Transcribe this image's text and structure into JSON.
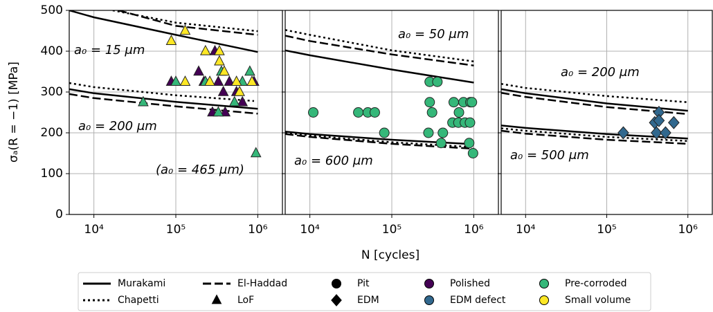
{
  "chart_data": {
    "type": "scatter",
    "ylabel": "σₐ(R = −1) [MPa]",
    "xlabel": "N [cycles]",
    "ylim": [
      0,
      500
    ],
    "yticks": [
      0,
      100,
      200,
      300,
      400,
      500
    ],
    "xlim": [
      5000,
      2000000
    ],
    "xscale": "log",
    "xticks": [
      {
        "value": 10000,
        "label": "10⁴"
      },
      {
        "value": 100000,
        "label": "10⁵"
      },
      {
        "value": 1000000,
        "label": "10⁶"
      }
    ],
    "grid": true,
    "legend": {
      "position": "bottom",
      "items": [
        {
          "name": "Murakami",
          "style": "solid"
        },
        {
          "name": "Chapetti",
          "style": "dotted"
        },
        {
          "name": "El-Haddad",
          "style": "dashed"
        },
        {
          "name": "LoF",
          "marker": "triangle"
        },
        {
          "name": "Pit",
          "marker": "circle"
        },
        {
          "name": "EDM",
          "marker": "diamond"
        },
        {
          "name": "Polished",
          "color": "#440154"
        },
        {
          "name": "EDM defect",
          "color": "#31688e"
        },
        {
          "name": "Pre-corroded",
          "color": "#35b779"
        },
        {
          "name": "Small volume",
          "color": "#fde725"
        }
      ]
    },
    "panels": [
      {
        "annotations": [
          "a₀ = 15 μm",
          "a₀ = 200 μm",
          "(a₀ = 465 μm)"
        ],
        "curves": [
          {
            "style": "solid",
            "x": [
              5000,
              10000,
              100000,
              1000000
            ],
            "values": [
              500,
              483,
              440,
              398
            ]
          },
          {
            "style": "dashed",
            "x": [
              20000,
              100000,
              1000000
            ],
            "values": [
              500,
              462,
              440
            ]
          },
          {
            "style": "dotted",
            "x": [
              17000,
              100000,
              1000000
            ],
            "values": [
              500,
              470,
              449
            ]
          },
          {
            "style": "solid",
            "x": [
              5000,
              10000,
              100000,
              1000000
            ],
            "values": [
              307,
              297,
              276,
              259
            ]
          },
          {
            "style": "dashed",
            "x": [
              5000,
              10000,
              100000,
              1000000
            ],
            "values": [
              295,
              285,
              265,
              247
            ]
          },
          {
            "style": "dotted",
            "x": [
              5000,
              10000,
              100000,
              900000
            ],
            "values": [
              322,
              312,
              292,
              278
            ]
          }
        ],
        "points": [
          {
            "marker": "triangle",
            "color": "#440154",
            "x": [
              88000,
              190000,
              220000,
              280000,
              330000,
              380000,
              400000,
              450000,
              550000,
              650000,
              900000,
              300000
            ],
            "values": [
              325,
              350,
              325,
              250,
              325,
              300,
              250,
              325,
              300,
              275,
              325,
              400
            ]
          },
          {
            "marker": "triangle",
            "color": "#35b779",
            "x": [
              40000,
              100000,
              230000,
              360000,
              520000,
              650000,
              800000,
              950000,
              330000
            ],
            "values": [
              275,
              325,
              325,
              350,
              275,
              325,
              350,
              150,
              250
            ]
          },
          {
            "marker": "triangle",
            "color": "#fde725",
            "x": [
              130000,
              88000,
              230000,
              340000,
              340000,
              390000,
              130000,
              260000,
              550000,
              850000,
              600000
            ],
            "values": [
              450,
              425,
              400,
              400,
              375,
              350,
              325,
              325,
              325,
              325,
              300
            ]
          }
        ]
      },
      {
        "annotations": [
          "a₀ = 50 μm",
          "a₀ = 600 μm"
        ],
        "curves": [
          {
            "style": "solid",
            "x": [
              5000,
              10000,
              100000,
              1000000
            ],
            "values": [
              402,
              390,
              355,
              323
            ]
          },
          {
            "style": "dashed",
            "x": [
              5000,
              10000,
              100000,
              1000000
            ],
            "values": [
              438,
              425,
              392,
              365
            ]
          },
          {
            "style": "dotted",
            "x": [
              5000,
              10000,
              100000,
              1000000
            ],
            "values": [
              452,
              440,
              402,
              375
            ]
          },
          {
            "style": "solid",
            "x": [
              5000,
              10000,
              100000,
              1000000
            ],
            "values": [
              203,
              197,
              183,
              172
            ]
          },
          {
            "style": "dashed",
            "x": [
              5000,
              10000,
              100000,
              1000000
            ],
            "values": [
              197,
              190,
              173,
              161
            ]
          },
          {
            "style": "dotted",
            "x": [
              5000,
              10000,
              100000,
              1000000
            ],
            "values": [
              200,
              193,
              177,
              165
            ]
          }
        ],
        "points": [
          {
            "marker": "circle",
            "color": "#35b779",
            "x": [
              11000,
              39000,
              51000,
              62000,
              81000,
              290000,
              360000,
              290000,
              310000,
              280000,
              400000,
              420000,
              570000,
              750000,
              910000,
              950000,
              550000,
              650000,
              780000,
              900000,
              880000,
              980000,
              660000
            ],
            "values": [
              250,
              250,
              250,
              250,
              200,
              325,
              325,
              275,
              250,
              200,
              175,
              200,
              275,
              275,
              275,
              275,
              225,
              225,
              225,
              225,
              175,
              150,
              250
            ]
          }
        ]
      },
      {
        "annotations": [
          "a₀ = 200 μm",
          "a₀ = 500 μm"
        ],
        "curves": [
          {
            "style": "solid",
            "x": [
              5000,
              10000,
              100000,
              1000000
            ],
            "values": [
              307,
              297,
              272,
              254
            ]
          },
          {
            "style": "dashed",
            "x": [
              5000,
              10000,
              100000,
              1000000
            ],
            "values": [
              298,
              288,
              263,
              246
            ]
          },
          {
            "style": "dotted",
            "x": [
              5000,
              10000,
              100000,
              1000000
            ],
            "values": [
              320,
              310,
              290,
              275
            ]
          },
          {
            "style": "solid",
            "x": [
              5000,
              10000,
              100000,
              1000000
            ],
            "values": [
              218,
              212,
              197,
              186
            ]
          },
          {
            "style": "dashed",
            "x": [
              5000,
              10000,
              100000,
              1000000
            ],
            "values": [
              205,
              198,
              183,
              173
            ]
          },
          {
            "style": "dotted",
            "x": [
              5000,
              10000,
              100000,
              1000000
            ],
            "values": [
              211,
              205,
              190,
              180
            ]
          }
        ],
        "points": [
          {
            "marker": "diamond",
            "color": "#31688e",
            "x": [
              160000,
              390000,
              440000,
              410000,
              530000,
              670000,
              440000
            ],
            "values": [
              200,
              225,
              250,
              200,
              200,
              225,
              230
            ]
          }
        ]
      }
    ]
  }
}
